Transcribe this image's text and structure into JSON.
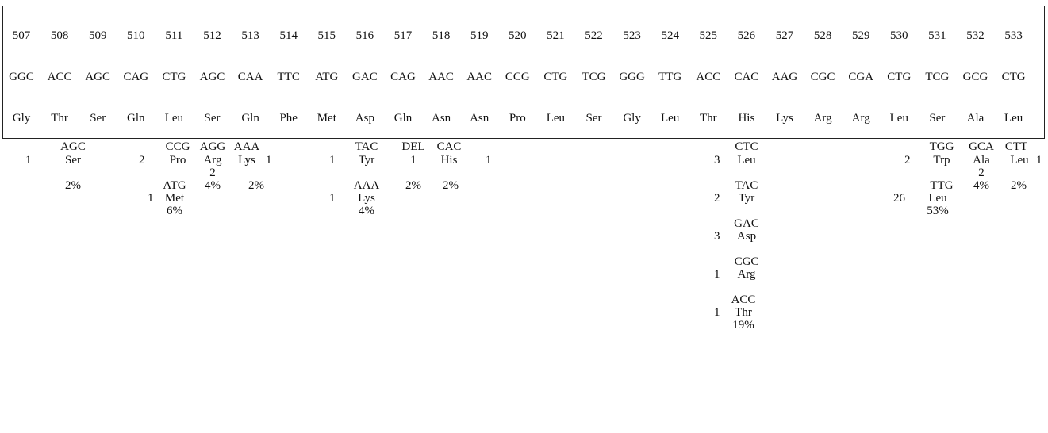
{
  "sequence": {
    "positions": [
      "507",
      "508",
      "509",
      "510",
      "511",
      "512",
      "513",
      "514",
      "515",
      "516",
      "517",
      "518",
      "519",
      "520",
      "521",
      "522",
      "523",
      "524",
      "525",
      "526",
      "527",
      "528",
      "529",
      "530",
      "531",
      "532",
      "533"
    ],
    "codons": [
      "GGC",
      "ACC",
      "AGC",
      "CAG",
      "CTG",
      "AGC",
      "CAA",
      "TTC",
      "ATG",
      "GAC",
      "CAG",
      "AAC",
      "AAC",
      "CCG",
      "CTG",
      "TCG",
      "GGG",
      "TTG",
      "ACC",
      "CAC",
      "AAG",
      "CGC",
      "CGA",
      "CTG",
      "TCG",
      "GCG",
      "CTG"
    ],
    "amino_acids": [
      "Gly",
      "Thr",
      "Ser",
      "Gln",
      "Leu",
      "Ser",
      "Gln",
      "Phe",
      "Met",
      "Asp",
      "Gln",
      "Asn",
      "Asn",
      "Pro",
      "Leu",
      "Ser",
      "Gly",
      "Leu",
      "Thr",
      "His",
      "Lys",
      "Arg",
      "Arg",
      "Leu",
      "Ser",
      "Ala",
      "Leu"
    ]
  },
  "mutations": {
    "g509": {
      "codon": "AGC",
      "aa": "Ser",
      "count": "1",
      "pct": "2%"
    },
    "g512": {
      "codon1": "CCG",
      "aa1": "Pro",
      "count1": "2",
      "codon2": "ATG",
      "aa2": "Met",
      "count2": "1",
      "pct": "6%"
    },
    "g513": {
      "codon": "AGG",
      "aa": "Arg",
      "count": "2",
      "pct": "4%"
    },
    "g514": {
      "codon": "AAA",
      "aa": "Lys",
      "count": "1",
      "pct": "2%"
    },
    "g516": {
      "codon1": "TAC",
      "aa1": "Tyr",
      "count1": "1",
      "codon2": "AAA",
      "aa2": "Lys",
      "count2": "1",
      "pct": "4%"
    },
    "g517": {
      "codon": "DEL",
      "count": "1",
      "pct": "2%"
    },
    "g518": {
      "codon": "CAC",
      "aa": "His",
      "count": "1",
      "pct": "2%"
    },
    "g526": {
      "entries": [
        {
          "codon": "CTC",
          "aa": "Leu",
          "count": "3"
        },
        {
          "codon": "TAC",
          "aa": "Tyr",
          "count": "2"
        },
        {
          "codon": "GAC",
          "aa": "Asp",
          "count": "3"
        },
        {
          "codon": "CGC",
          "aa": "Arg",
          "count": "1"
        },
        {
          "codon": "ACC",
          "aa": "Thr",
          "count": "1"
        }
      ],
      "pct": "19%"
    },
    "g531": {
      "codon1": "TGG",
      "aa1": "Trp",
      "count1": "2",
      "codon2": "TTG",
      "aa2": "Leu",
      "count2": "26",
      "pct": "53%"
    },
    "g532": {
      "codon": "GCA",
      "aa": "Ala",
      "count": "2",
      "pct": "4%"
    },
    "g533": {
      "codon": "CTT",
      "aa": "Leu",
      "count": "1",
      "pct": "2%"
    }
  }
}
